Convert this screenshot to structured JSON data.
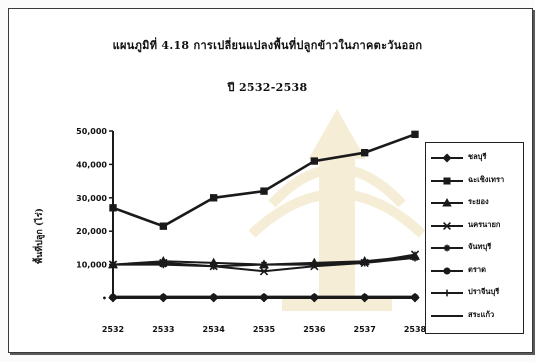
{
  "title_line1": "แผนภูมิที่ 4.18 การเปลี่ยนแปลงพื้นที่ปลูกข้าวในภาคตะวันออก",
  "title_line2": "ปี 2532-2538",
  "colors": {
    "line": "#1a1a1a",
    "frame": "#3a3a3a",
    "watermark": "#d9b24a"
  },
  "chart_data": {
    "type": "line",
    "title": "แผนภูมิที่ 4.18 การเปลี่ยนแปลงพื้นที่ปลูกข้าวในภาคตะวันออก ปี 2532-2538",
    "ylabel": "พื้นที่ปลูก (ไร่)",
    "xlabel": "",
    "x": [
      "2532",
      "2533",
      "2534",
      "2535",
      "2536",
      "2537",
      "2538"
    ],
    "y_ticks": [
      "50,000",
      "40,000",
      "30,000",
      "20,000",
      "10,000",
      "0"
    ],
    "y_tick_values": [
      50000,
      40000,
      30000,
      20000,
      10000,
      0
    ],
    "ylim": [
      0,
      50000
    ],
    "grid": false,
    "legend_position": "right",
    "series": [
      {
        "name": "ชลบุรี",
        "marker": "diamond",
        "values": [
          100,
          100,
          100,
          100,
          100,
          100,
          100
        ]
      },
      {
        "name": "ฉะเชิงเทรา",
        "marker": "square",
        "values": [
          27000,
          21500,
          30000,
          32000,
          41000,
          43500,
          49000
        ]
      },
      {
        "name": "ระยอง",
        "marker": "triangle",
        "values": [
          10000,
          11000,
          10500,
          10000,
          10500,
          11000,
          12500
        ]
      },
      {
        "name": "นครนายก",
        "marker": "x",
        "values": [
          10000,
          10500,
          9500,
          8000,
          9500,
          10500,
          13000
        ]
      },
      {
        "name": "จันทบุรี",
        "marker": "star",
        "values": [
          10000,
          10000,
          9500,
          10000,
          10000,
          10500,
          12000
        ]
      },
      {
        "name": "ตราด",
        "marker": "circle",
        "values": [
          200,
          200,
          200,
          200,
          200,
          200,
          200
        ]
      },
      {
        "name": "ปราจีนบุรี",
        "marker": "plus",
        "values": [
          300,
          300,
          300,
          300,
          300,
          300,
          300
        ]
      },
      {
        "name": "สระแก้ว",
        "marker": "dash",
        "values": [
          400,
          400,
          400,
          400,
          400,
          400,
          400
        ]
      }
    ]
  }
}
